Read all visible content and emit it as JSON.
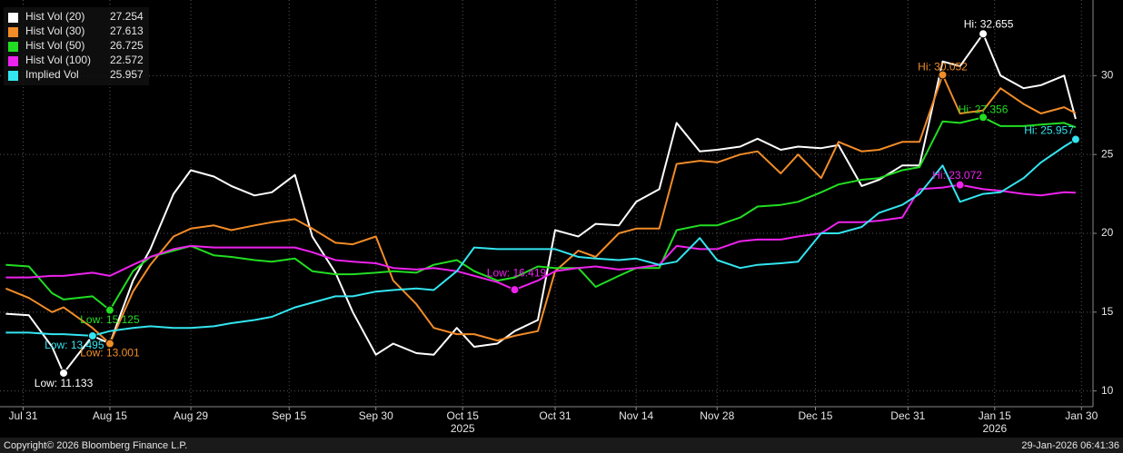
{
  "chart_data": {
    "type": "line",
    "legend_position": "upper left",
    "grid": true,
    "x": [
      "2025-07-28",
      "2025-08-01",
      "2025-08-05",
      "2025-08-07",
      "2025-08-12",
      "2025-08-15",
      "2025-08-19",
      "2025-08-22",
      "2025-08-26",
      "2025-08-29",
      "2025-09-02",
      "2025-09-05",
      "2025-09-09",
      "2025-09-12",
      "2025-09-16",
      "2025-09-19",
      "2025-09-23",
      "2025-09-26",
      "2025-09-30",
      "2025-10-03",
      "2025-10-07",
      "2025-10-10",
      "2025-10-14",
      "2025-10-17",
      "2025-10-21",
      "2025-10-24",
      "2025-10-28",
      "2025-10-31",
      "2025-11-04",
      "2025-11-07",
      "2025-11-11",
      "2025-11-14",
      "2025-11-18",
      "2025-11-21",
      "2025-11-25",
      "2025-11-28",
      "2025-12-02",
      "2025-12-05",
      "2025-12-09",
      "2025-12-12",
      "2025-12-16",
      "2025-12-19",
      "2025-12-23",
      "2025-12-26",
      "2025-12-30",
      "2026-01-02",
      "2026-01-06",
      "2026-01-09",
      "2026-01-13",
      "2026-01-16",
      "2026-01-20",
      "2026-01-23",
      "2026-01-27",
      "2026-01-29"
    ],
    "xlim": [
      "2025-07-27",
      "2026-02-01"
    ],
    "xticks": [
      {
        "value": "2025-07-31",
        "label": "Jul 31"
      },
      {
        "value": "2025-08-15",
        "label": "Aug 15"
      },
      {
        "value": "2025-08-29",
        "label": "Aug 29"
      },
      {
        "value": "2025-09-15",
        "label": "Sep 15"
      },
      {
        "value": "2025-09-30",
        "label": "Sep 30"
      },
      {
        "value": "2025-10-15",
        "label": "Oct 15"
      },
      {
        "value": "2025-10-31",
        "label": "Oct 31"
      },
      {
        "value": "2025-11-14",
        "label": "Nov 14"
      },
      {
        "value": "2025-11-28",
        "label": "Nov 28"
      },
      {
        "value": "2025-12-15",
        "label": "Dec 15"
      },
      {
        "value": "2025-12-31",
        "label": "Dec 31"
      },
      {
        "value": "2026-01-15",
        "label": "Jan 15"
      },
      {
        "value": "2026-01-30",
        "label": "Jan 30"
      }
    ],
    "x_year_labels": [
      {
        "value": "2025-10-15",
        "label": "2025"
      },
      {
        "value": "2026-01-15",
        "label": "2026"
      }
    ],
    "ylim": [
      9,
      34.8
    ],
    "yticks": [
      10,
      15,
      20,
      25,
      30
    ],
    "series": [
      {
        "name": "Hist Vol (20)",
        "color": "#ffffff",
        "values": [
          14.9,
          14.8,
          12.8,
          11.133,
          13.5,
          13.0,
          17.0,
          19.0,
          22.5,
          24.0,
          23.6,
          23.0,
          22.4,
          22.6,
          23.7,
          19.8,
          17.5,
          15.0,
          12.3,
          13.0,
          12.4,
          12.3,
          14.0,
          12.8,
          13.0,
          13.8,
          14.5,
          20.2,
          19.8,
          20.6,
          20.5,
          22.0,
          22.8,
          27.0,
          25.2,
          25.3,
          25.5,
          26.0,
          25.3,
          25.5,
          25.4,
          25.6,
          23.0,
          23.4,
          24.3,
          24.3,
          30.9,
          30.6,
          32.655,
          30.0,
          29.2,
          29.4,
          30.0,
          27.254
        ]
      },
      {
        "name": "Hist Vol (30)",
        "color": "#f28c28",
        "values": [
          16.5,
          15.9,
          15.0,
          15.3,
          14.0,
          13.001,
          16.3,
          18.0,
          19.8,
          20.3,
          20.5,
          20.2,
          20.5,
          20.7,
          20.9,
          20.3,
          19.4,
          19.3,
          19.8,
          17.0,
          15.5,
          14.0,
          13.6,
          13.6,
          13.2,
          13.5,
          13.8,
          17.6,
          18.9,
          18.5,
          20.0,
          20.3,
          20.3,
          24.4,
          24.6,
          24.5,
          25.0,
          25.2,
          23.8,
          25.0,
          23.5,
          25.8,
          25.2,
          25.3,
          25.8,
          25.8,
          30.052,
          27.6,
          27.8,
          29.2,
          28.2,
          27.6,
          28.0,
          27.613
        ]
      },
      {
        "name": "Hist Vol (50)",
        "color": "#22dd22",
        "values": [
          18.0,
          17.9,
          16.2,
          15.8,
          16.0,
          15.125,
          17.6,
          18.5,
          18.9,
          19.2,
          18.6,
          18.5,
          18.3,
          18.2,
          18.4,
          17.6,
          17.4,
          17.4,
          17.5,
          17.6,
          17.5,
          18.0,
          18.3,
          17.6,
          17.0,
          17.2,
          17.9,
          17.8,
          17.8,
          16.6,
          17.3,
          17.8,
          17.8,
          20.2,
          20.5,
          20.5,
          21.0,
          21.7,
          21.8,
          22.0,
          22.6,
          23.1,
          23.4,
          23.5,
          24.0,
          24.2,
          27.1,
          27.0,
          27.356,
          26.8,
          26.8,
          26.9,
          27.0,
          26.725
        ]
      },
      {
        "name": "Hist Vol (100)",
        "color": "#ee22ee",
        "values": [
          17.2,
          17.2,
          17.3,
          17.3,
          17.5,
          17.3,
          18.0,
          18.5,
          19.0,
          19.2,
          19.1,
          19.1,
          19.1,
          19.1,
          19.1,
          18.8,
          18.3,
          18.2,
          18.1,
          17.8,
          17.7,
          17.8,
          17.6,
          17.3,
          16.9,
          16.419,
          17.0,
          17.6,
          17.8,
          17.9,
          17.7,
          17.8,
          18.0,
          19.2,
          19.0,
          19.0,
          19.5,
          19.6,
          19.6,
          19.8,
          20.0,
          20.7,
          20.7,
          20.8,
          21.0,
          22.8,
          22.9,
          23.072,
          22.8,
          22.7,
          22.5,
          22.4,
          22.6,
          22.572
        ]
      },
      {
        "name": "Implied Vol",
        "color": "#33e5f0",
        "values": [
          13.7,
          13.7,
          13.6,
          13.6,
          13.495,
          13.8,
          14.0,
          14.1,
          14.0,
          14.0,
          14.1,
          14.3,
          14.5,
          14.7,
          15.3,
          15.6,
          16.0,
          16.0,
          16.3,
          16.4,
          16.5,
          16.4,
          17.6,
          19.1,
          19.0,
          19.0,
          19.0,
          19.0,
          18.5,
          18.4,
          18.3,
          18.4,
          18.0,
          18.2,
          19.7,
          18.3,
          17.8,
          18.0,
          18.1,
          18.2,
          20.0,
          20.0,
          20.4,
          21.3,
          21.8,
          22.5,
          24.3,
          22.0,
          22.5,
          22.6,
          23.5,
          24.5,
          25.5,
          25.957
        ]
      }
    ],
    "annotations": [
      {
        "label": "Low: 11.133",
        "x": "2025-08-07",
        "y": 11.133,
        "color": "#ffffff"
      },
      {
        "label": "Hi: 32.655",
        "x": "2026-01-13",
        "y": 32.655,
        "color": "#ffffff"
      },
      {
        "label": "Low: 13.001",
        "x": "2025-08-15",
        "y": 13.001,
        "color": "#f28c28"
      },
      {
        "label": "Hi: 30.052",
        "x": "2026-01-06",
        "y": 30.052,
        "color": "#f28c28"
      },
      {
        "label": "Low: 15.125",
        "x": "2025-08-15",
        "y": 15.125,
        "color": "#22dd22"
      },
      {
        "label": "Hi: 27.356",
        "x": "2026-01-13",
        "y": 27.356,
        "color": "#22dd22"
      },
      {
        "label": "Low: 16.419",
        "x": "2025-10-24",
        "y": 16.419,
        "color": "#ee22ee"
      },
      {
        "label": "Hi: 23.072",
        "x": "2026-01-09",
        "y": 23.072,
        "color": "#ee22ee"
      },
      {
        "label": "Low: 13.495",
        "x": "2025-08-12",
        "y": 13.495,
        "color": "#33e5f0"
      },
      {
        "label": "Hi: 25.957",
        "x": "2026-01-29",
        "y": 25.957,
        "color": "#33e5f0"
      }
    ]
  },
  "footer": {
    "copyright": "Copyright© 2026 Bloomberg Finance L.P.",
    "timestamp": "29-Jan-2026 06:41:36"
  }
}
